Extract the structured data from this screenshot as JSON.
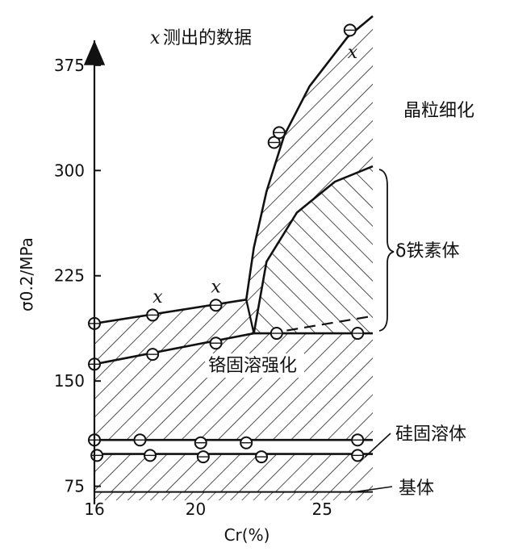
{
  "chart_data": {
    "type": "area",
    "title": "x测出的数据",
    "xlabel": "Cr(%)",
    "ylabel": "σ0.2/MPa",
    "xlim": [
      16,
      27
    ],
    "ylim": [
      65,
      410
    ],
    "x_ticks": [
      16,
      20,
      25
    ],
    "y_ticks": [
      75,
      150,
      225,
      300,
      375
    ],
    "series": [
      {
        "name": "基体",
        "x": [
          16,
          27
        ],
        "y": [
          71,
          71
        ]
      },
      {
        "name": "硅固溶体",
        "x": [
          16,
          27
        ],
        "y": [
          98,
          98
        ]
      },
      {
        "name": "",
        "x": [
          16,
          27
        ],
        "y": [
          108,
          108
        ]
      },
      {
        "name": "铬固溶强化",
        "x": [
          16,
          22.3,
          27
        ],
        "y": [
          162,
          184,
          184
        ]
      },
      {
        "name": "",
        "x": [
          16,
          22
        ],
        "y": [
          191,
          208
        ]
      },
      {
        "name": "δ铁素体",
        "x": [
          22.3,
          22.8,
          24,
          25.5,
          27
        ],
        "y": [
          184,
          235,
          270,
          292,
          303
        ]
      },
      {
        "name": "晶粒细化",
        "x": [
          22,
          22.3,
          22.8,
          23.5,
          24.5,
          26,
          27
        ],
        "y": [
          208,
          245,
          285,
          325,
          360,
          395,
          410
        ]
      }
    ],
    "points_markers": [
      {
        "x": 16,
        "y": 191
      },
      {
        "x": 18.3,
        "y": 197
      },
      {
        "x": 20.8,
        "y": 204
      },
      {
        "x": 16,
        "y": 162
      },
      {
        "x": 18.3,
        "y": 169
      },
      {
        "x": 20.8,
        "y": 177
      },
      {
        "x": 23.2,
        "y": 184
      },
      {
        "x": 26.4,
        "y": 184
      },
      {
        "x": 23.1,
        "y": 320
      },
      {
        "x": 23.3,
        "y": 327
      },
      {
        "x": 26.1,
        "y": 400
      },
      {
        "x": 16,
        "y": 108
      },
      {
        "x": 17.8,
        "y": 108
      },
      {
        "x": 20.2,
        "y": 106
      },
      {
        "x": 22,
        "y": 106
      },
      {
        "x": 26.4,
        "y": 108
      },
      {
        "x": 16.1,
        "y": 97
      },
      {
        "x": 18.2,
        "y": 97
      },
      {
        "x": 20.3,
        "y": 96
      },
      {
        "x": 22.6,
        "y": 96
      },
      {
        "x": 26.4,
        "y": 97
      }
    ],
    "x_markers": [
      {
        "x": 18.5,
        "y": 206,
        "label": "x"
      },
      {
        "x": 20.8,
        "y": 213,
        "label": "x"
      },
      {
        "x": 26.2,
        "y": 380,
        "label": "x"
      }
    ],
    "labels": {
      "grain": "晶粒细化",
      "ferrite": "δ铁素体",
      "cr": "铬固溶强化",
      "si": "硅固溶体",
      "matrix": "基体"
    },
    "grid": false,
    "legend": "none"
  }
}
